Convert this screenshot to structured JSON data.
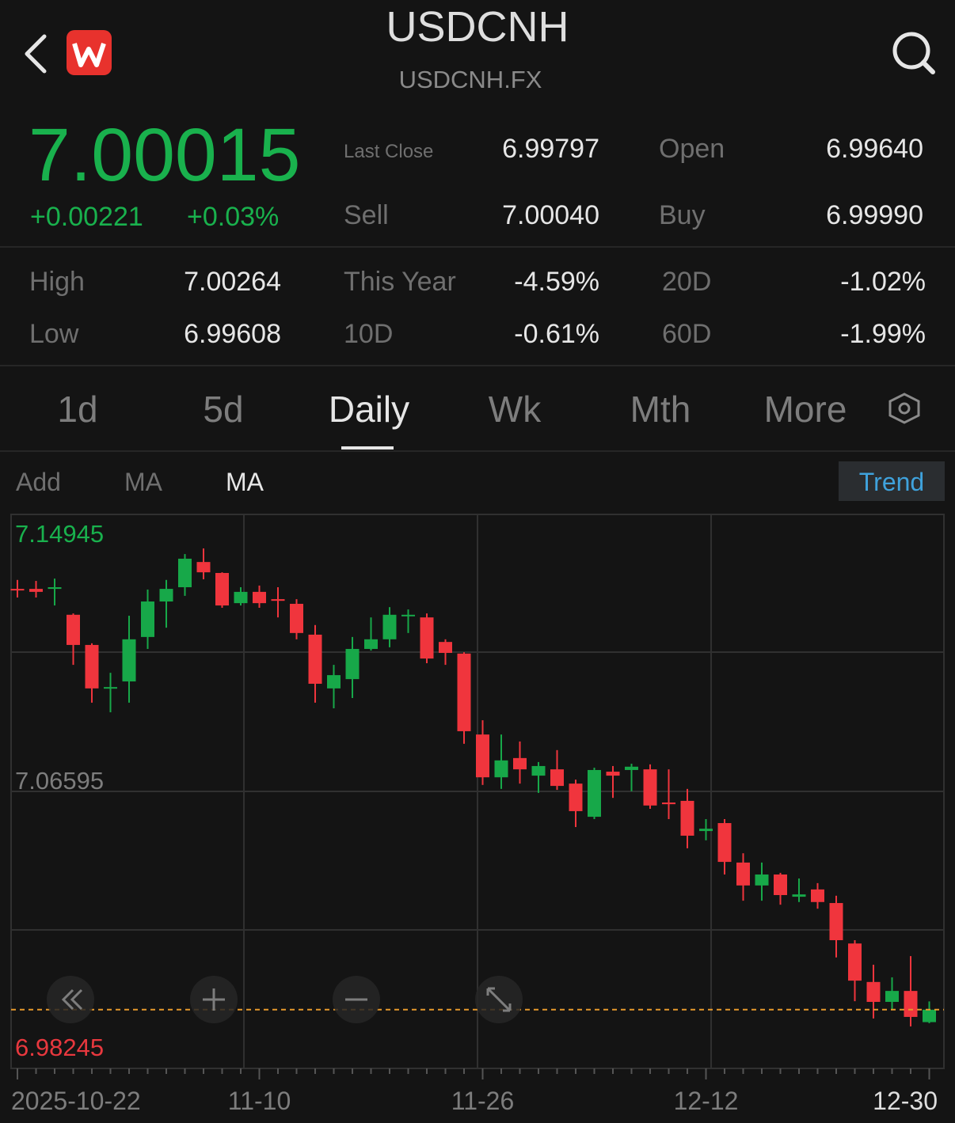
{
  "header": {
    "title": "USDCNH",
    "subtitle": "USDCNH.FX"
  },
  "quote": {
    "price": "7.00015",
    "change": "+0.00221",
    "change_pct": "+0.03%"
  },
  "stats": {
    "last_close": {
      "label": "Last Close",
      "value": "6.99797"
    },
    "open": {
      "label": "Open",
      "value": "6.99640"
    },
    "sell": {
      "label": "Sell",
      "value": "7.00040"
    },
    "buy": {
      "label": "Buy",
      "value": "6.99990"
    },
    "high": {
      "label": "High",
      "value": "7.00264"
    },
    "this_year": {
      "label": "This Year",
      "value": "-4.59%"
    },
    "d20": {
      "label": "20D",
      "value": "-1.02%"
    },
    "low": {
      "label": "Low",
      "value": "6.99608"
    },
    "d10": {
      "label": "10D",
      "value": "-0.61%"
    },
    "d60": {
      "label": "60D",
      "value": "-1.99%"
    }
  },
  "tabs": [
    "1d",
    "5d",
    "Daily",
    "Wk",
    "Mth",
    "More"
  ],
  "active_tab": 2,
  "indicators": [
    "Add",
    "MA",
    "MA"
  ],
  "trend_button": "Trend",
  "chart_data": {
    "type": "candlestick",
    "categories": [
      "2025-10-22",
      null,
      null,
      null,
      null,
      null,
      null,
      null,
      null,
      null,
      null,
      null,
      null,
      "11-10",
      null,
      null,
      null,
      null,
      null,
      null,
      null,
      null,
      null,
      null,
      null,
      "11-26",
      null,
      null,
      null,
      null,
      null,
      null,
      null,
      null,
      null,
      null,
      null,
      "12-12",
      null,
      null,
      null,
      null,
      null,
      null,
      null,
      null,
      null,
      null,
      null,
      "12-30"
    ],
    "open": [
      7.127,
      7.127,
      7.127,
      7.1192,
      7.1101,
      7.097,
      7.0991,
      7.1125,
      7.1232,
      7.1275,
      7.1351,
      7.1318,
      7.1227,
      7.1261,
      7.1239,
      7.1225,
      7.1132,
      7.097,
      7.0998,
      7.1089,
      7.1118,
      7.1189,
      7.1184,
      7.111,
      7.1075,
      7.0831,
      7.0702,
      7.076,
      7.0707,
      7.0726,
      7.0683,
      7.0583,
      7.0719,
      7.0724,
      7.0726,
      7.0626,
      7.0631,
      7.054,
      7.0564,
      7.0445,
      7.0376,
      7.0409,
      7.0342,
      7.0364,
      7.0323,
      7.0201,
      7.0085,
      7.0025,
      7.0058,
      6.9964
    ],
    "high": [
      7.1297,
      7.1294,
      7.1301,
      7.1196,
      7.1106,
      7.1017,
      7.1189,
      7.1268,
      7.1297,
      7.1375,
      7.1392,
      7.132,
      7.1275,
      7.128,
      7.1275,
      7.1239,
      7.1161,
      7.1041,
      7.1125,
      7.1184,
      7.1215,
      7.1208,
      7.1196,
      7.1118,
      7.1079,
      7.0874,
      7.0831,
      7.081,
      7.0748,
      7.0784,
      7.0695,
      7.0731,
      7.0736,
      7.0743,
      7.0741,
      7.0726,
      7.0667,
      7.0576,
      7.0576,
      7.0473,
      7.0445,
      7.0414,
      7.0397,
      7.0383,
      7.0345,
      7.0211,
      7.0137,
      7.0099,
      7.0163,
      7.00264
    ],
    "low": [
      7.1244,
      7.1244,
      7.122,
      7.1041,
      7.0927,
      7.0898,
      7.0927,
      7.1089,
      7.1153,
      7.1249,
      7.1299,
      7.1213,
      7.122,
      7.1213,
      7.1184,
      7.1118,
      7.0927,
      7.091,
      7.0941,
      7.1084,
      7.1094,
      7.1137,
      7.1046,
      7.1041,
      7.0803,
      7.0679,
      7.0667,
      7.0683,
      7.0655,
      7.0664,
      7.0552,
      7.0576,
      7.064,
      7.066,
      7.0607,
      7.0576,
      7.0488,
      7.0512,
      7.0409,
      7.033,
      7.033,
      7.0318,
      7.0326,
      7.0306,
      7.0159,
      7.0027,
      6.9975,
      7.0001,
      6.9951,
      6.99608
    ],
    "close": [
      7.1268,
      7.1261,
      7.1275,
      7.1101,
      7.097,
      7.0974,
      7.1118,
      7.1232,
      7.127,
      7.1361,
      7.132,
      7.122,
      7.1261,
      7.1227,
      7.1234,
      7.1137,
      7.0984,
      7.101,
      7.1089,
      7.1118,
      7.1192,
      7.1192,
      7.106,
      7.1077,
      7.0841,
      7.0702,
      7.0753,
      7.0726,
      7.0736,
      7.0676,
      7.06,
      7.0724,
      7.0707,
      7.0734,
      7.0617,
      7.0621,
      7.0526,
      7.0547,
      7.0447,
      7.0376,
      7.0409,
      7.0347,
      7.0349,
      7.0326,
      7.0211,
      7.0089,
      7.0025,
      7.0058,
      6.99797,
      7.00015
    ],
    "up_color": "#17a849",
    "down_color": "#f0353d",
    "ylim": [
      6.98245,
      7.14945
    ],
    "yticks": [
      6.98245,
      7.06595,
      7.14945
    ],
    "ytick_colors": [
      "#e8383e",
      "#7d7d7d",
      "#19b14d"
    ],
    "price_line": 7.00015,
    "price_line_color": "#e89a2c",
    "grid": true
  }
}
